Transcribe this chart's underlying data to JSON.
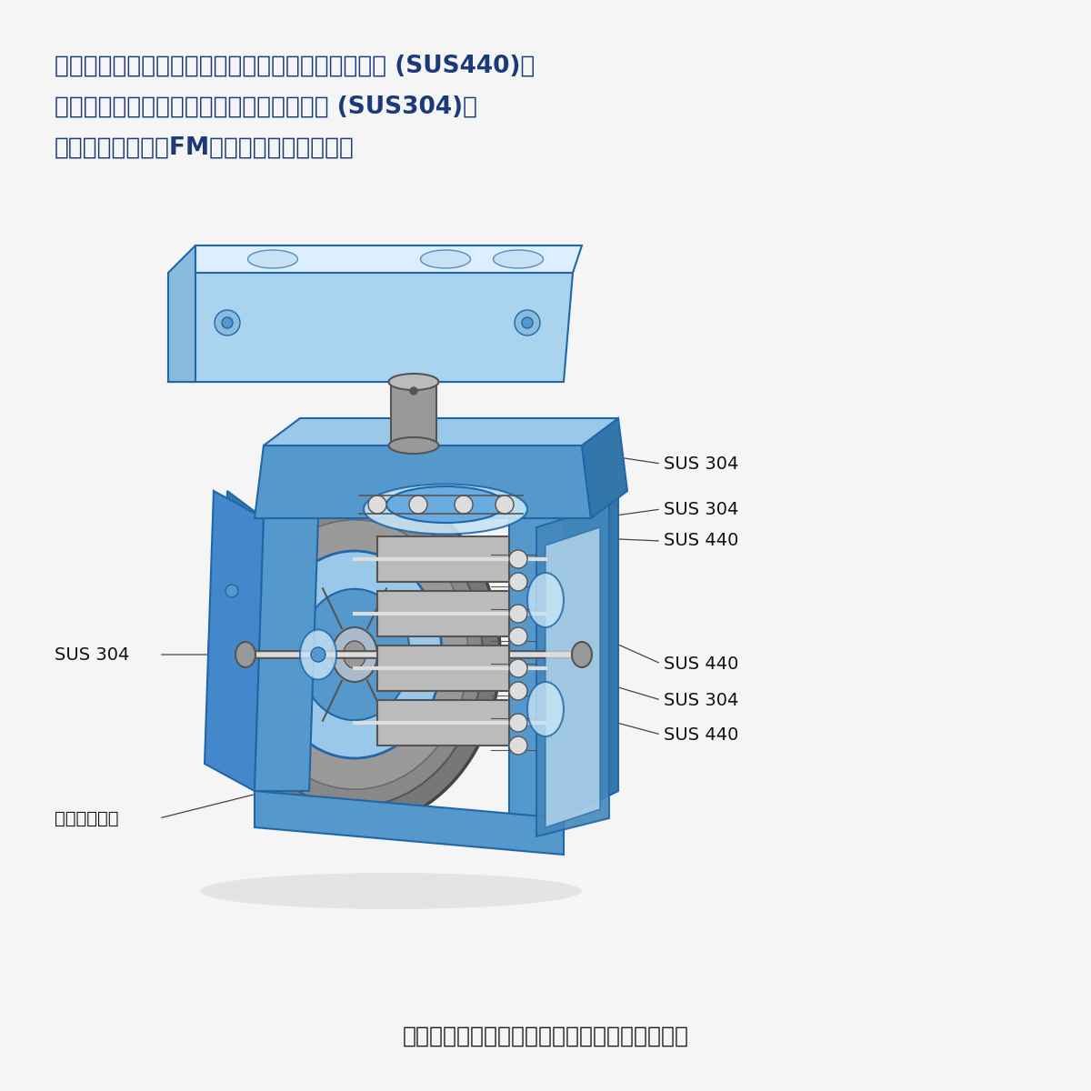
{
  "background_color": "#f5f5f5",
  "header_text_line1": "プラスチック部分を除いて、金属部分はベアリング (SUS440)、",
  "header_text_line2": "ボルトにいたるまですべて全てステンレス (SUS304)。",
  "header_text_line3": "なお、食品機械用FMグリースを標準仕様。",
  "header_color": "#1a3a7a",
  "header_fontsize": 19,
  "footer_text": "［ステンレスキャスター静音シリーズ構造図］",
  "footer_color": "#222222",
  "footer_fontsize": 18,
  "label_color": "#111111",
  "label_fontsize": 14,
  "blue_light": "#9ac8e8",
  "blue_mid": "#5599cc",
  "blue_dark": "#2266aa",
  "blue_plate": "#aad4ee",
  "blue_transparent": "#c8e4f4",
  "gray_tire": "#8a8a8a",
  "gray_light": "#bbbbbb",
  "gray_dark": "#555555",
  "gray_metal": "#999999",
  "silver": "#dddddd",
  "line_color": "#444444",
  "line_width": 0.9
}
